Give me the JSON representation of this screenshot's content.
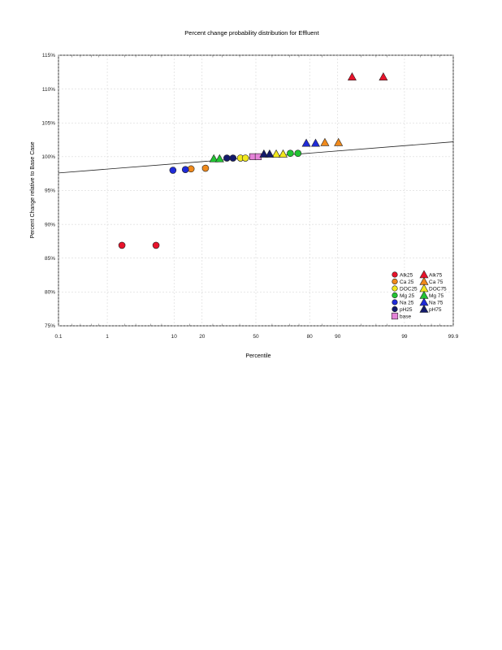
{
  "chart_data": {
    "type": "scatter",
    "title": "Percent change probability distribution for Effluent",
    "xlabel": "Percentile",
    "ylabel": "Percent Change relative to Base Case",
    "x_scale": "normal-probability",
    "x_ticks": [
      0.1,
      1,
      10,
      20,
      50,
      80,
      90,
      99,
      99.9
    ],
    "x_tick_labels": [
      "0.1",
      "1",
      "10",
      "20",
      "50",
      "80",
      "90",
      "99",
      "99.9"
    ],
    "ylim": [
      75,
      115
    ],
    "y_ticks": [
      75,
      80,
      85,
      90,
      95,
      100,
      105,
      110,
      115
    ],
    "y_tick_labels": [
      "75%",
      "80%",
      "85%",
      "90%",
      "95%",
      "100%",
      "105%",
      "110%",
      "115%"
    ],
    "fit_line": {
      "x": [
        0.1,
        99.9
      ],
      "y": [
        97.6,
        102.2
      ]
    },
    "series": [
      {
        "name": "Alk25",
        "marker": "circle",
        "color": "#e8132b",
        "points": [
          [
            1.8,
            86.9
          ],
          [
            5.9,
            86.9
          ]
        ]
      },
      {
        "name": "Ca 25",
        "marker": "circle",
        "color": "#f08a1c",
        "points": [
          [
            15.5,
            98.2
          ],
          [
            21.5,
            98.3
          ]
        ]
      },
      {
        "name": "DOC25",
        "marker": "circle",
        "color": "#f2e81d",
        "points": [
          [
            40.5,
            99.8
          ],
          [
            43.5,
            99.8
          ]
        ]
      },
      {
        "name": "Mg 25",
        "marker": "circle",
        "color": "#22c433",
        "points": [
          [
            70.5,
            100.5
          ],
          [
            74.5,
            100.5
          ]
        ]
      },
      {
        "name": "Na 25",
        "marker": "circle",
        "color": "#1f2bd8",
        "points": [
          [
            9.7,
            98.0
          ],
          [
            13.5,
            98.1
          ]
        ]
      },
      {
        "name": "pH25",
        "marker": "circle",
        "color": "#131a6b",
        "points": [
          [
            32.5,
            99.8
          ],
          [
            36.0,
            99.8
          ]
        ]
      },
      {
        "name": "base",
        "marker": "square",
        "color": "#e483d8",
        "points": [
          [
            48.0,
            100.0
          ],
          [
            51.5,
            100.0
          ]
        ]
      },
      {
        "name": "Alk75",
        "marker": "triangle",
        "color": "#e8132b",
        "points": [
          [
            93.4,
            111.8
          ],
          [
            97.7,
            111.8
          ]
        ]
      },
      {
        "name": "Ca 75",
        "marker": "triangle",
        "color": "#f08a1c",
        "points": [
          [
            86.0,
            102.1
          ],
          [
            90.2,
            102.1
          ]
        ]
      },
      {
        "name": "DOC75",
        "marker": "triangle",
        "color": "#f2e81d",
        "points": [
          [
            62.5,
            100.4
          ],
          [
            66.5,
            100.4
          ]
        ]
      },
      {
        "name": "Mg 75",
        "marker": "triangle",
        "color": "#22c433",
        "points": [
          [
            25.5,
            99.7
          ],
          [
            28.5,
            99.7
          ]
        ]
      },
      {
        "name": "Na 75",
        "marker": "triangle",
        "color": "#1f2bd8",
        "points": [
          [
            78.5,
            102.0
          ],
          [
            82.5,
            102.0
          ]
        ]
      },
      {
        "name": "pH75",
        "marker": "triangle",
        "color": "#131a6b",
        "points": [
          [
            55.0,
            100.4
          ],
          [
            58.5,
            100.4
          ]
        ]
      }
    ],
    "legend": {
      "placement": "bottom-right",
      "columns": [
        [
          "Alk25",
          "Ca 25",
          "DOC25",
          "Mg 25",
          "Na 25",
          "pH25",
          "base"
        ],
        [
          "Alk75",
          "Ca 75",
          "DOC75",
          "Mg 75",
          "Na 75",
          "pH75"
        ]
      ]
    }
  }
}
